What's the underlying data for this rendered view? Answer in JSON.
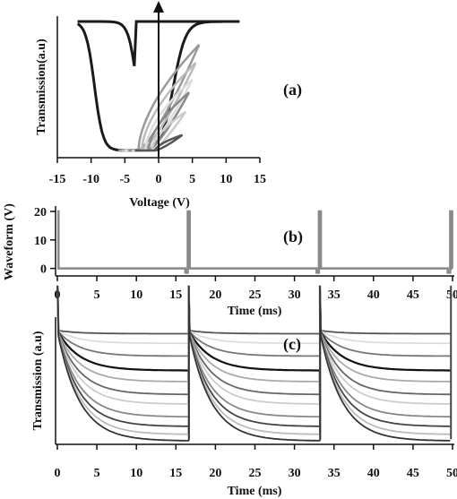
{
  "chart_data": [
    {
      "panel": "(a)",
      "type": "line",
      "xlabel": "Voltage (V)",
      "ylabel": "Transmission(a.u)",
      "xlim": [
        -15,
        15
      ],
      "xticks": [
        "-15",
        "-10",
        "-5",
        "0",
        "5",
        "10",
        "15"
      ],
      "grid": false,
      "colors": [
        "#1a1a1a",
        "#999999",
        "#bbbbbb",
        "#dddddd",
        "#888888",
        "#cccccc",
        "#555555"
      ],
      "series": [
        {
          "amplitude_V": 12,
          "min_V": -3.5,
          "max": 1.0
        },
        {
          "amplitude_V": 6,
          "min_V": -3.0,
          "max": 0.82
        },
        {
          "amplitude_V": 5.5,
          "min_V": -2.5,
          "max": 0.68
        },
        {
          "amplitude_V": 5,
          "min_V": -2.0,
          "max": 0.55
        },
        {
          "amplitude_V": 4.5,
          "min_V": -1.5,
          "max": 0.45
        },
        {
          "amplitude_V": 4,
          "min_V": -1.0,
          "max": 0.3
        },
        {
          "amplitude_V": 3.5,
          "min_V": -0.5,
          "max": 0.12
        }
      ]
    },
    {
      "panel": "(b)",
      "type": "line",
      "xlabel": "Time (ms)",
      "ylabel": "Waveform (V)",
      "xlim": [
        0,
        50
      ],
      "ylim": [
        -2,
        20
      ],
      "xticks": [
        "0",
        "5",
        "10",
        "15",
        "20",
        "25",
        "30",
        "35",
        "40",
        "45",
        "50"
      ],
      "yticks": [
        "0",
        "10",
        "20"
      ],
      "grid": false,
      "pulse_times_ms": [
        0,
        16.6,
        33.2,
        49.8
      ],
      "pulse_height_V": 20,
      "baseline_V": 0,
      "color": "#888888"
    },
    {
      "panel": "(c)",
      "type": "line",
      "xlabel": "Time (ms)",
      "ylabel": "Transmission (a.u)",
      "xlim": [
        0,
        50
      ],
      "xticks": [
        "0",
        "5",
        "10",
        "15",
        "20",
        "25",
        "30",
        "35",
        "40",
        "45",
        "50"
      ],
      "grid": false,
      "period_ms": 16.6,
      "colors": [
        "#555555",
        "#dddddd",
        "#777777",
        "#111111",
        "#aaaaaa",
        "#666666",
        "#cccccc",
        "#888888",
        "#444444",
        "#bbbbbb",
        "#333333"
      ],
      "series": [
        {
          "start": 0.7,
          "end": 0.68
        },
        {
          "start": 0.7,
          "end": 0.62
        },
        {
          "start": 0.7,
          "end": 0.54
        },
        {
          "start": 0.7,
          "end": 0.45
        },
        {
          "start": 0.7,
          "end": 0.38
        },
        {
          "start": 0.7,
          "end": 0.3
        },
        {
          "start": 0.7,
          "end": 0.24
        },
        {
          "start": 0.7,
          "end": 0.16
        },
        {
          "start": 0.7,
          "end": 0.1
        },
        {
          "start": 0.7,
          "end": 0.05
        },
        {
          "start": 0.7,
          "end": 0.01
        }
      ]
    }
  ]
}
